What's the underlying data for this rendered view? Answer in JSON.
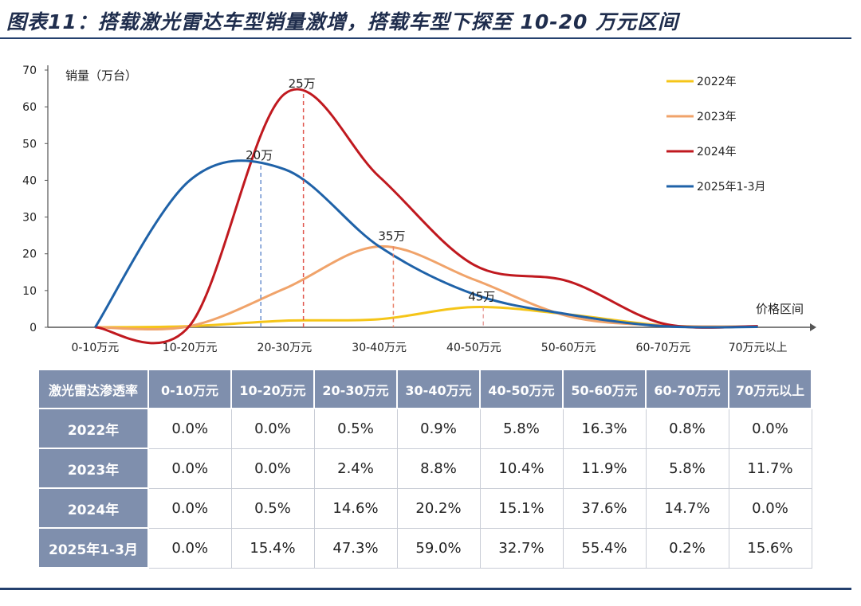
{
  "title": "图表11：搭载激光雷达车型销量激增，搭载车型下探至 10-20 万元区间",
  "chart_data": {
    "type": "line",
    "ylabel": "销量（万台）",
    "xlabel": "价格区间",
    "ylim": [
      0,
      70
    ],
    "y_ticks": [
      0,
      10,
      20,
      30,
      40,
      50,
      60,
      70
    ],
    "categories": [
      "0-10万元",
      "10-20万元",
      "20-30万元",
      "30-40万元",
      "40-50万元",
      "50-60万元",
      "60-70万元",
      "70万元以上"
    ],
    "series": [
      {
        "name": "2022年",
        "color": "#f5c518",
        "values": [
          0,
          0.3,
          1.8,
          2.2,
          5.5,
          3.5,
          0.5,
          0.2
        ]
      },
      {
        "name": "2023年",
        "color": "#f0a36a",
        "values": [
          0,
          0.3,
          10.5,
          22,
          13,
          3,
          0.5,
          0.2
        ]
      },
      {
        "name": "2024年",
        "color": "#c0191f",
        "values": [
          0,
          0.5,
          63.5,
          41,
          17,
          12.5,
          1,
          0.3
        ]
      },
      {
        "name": "2025年1-3月",
        "color": "#1f62a8",
        "values": [
          0,
          40,
          43,
          22,
          9,
          3.5,
          0.3,
          0.1
        ]
      }
    ],
    "legend_position": "top-right",
    "annotations": [
      {
        "text": "20万",
        "x": 1.75,
        "y": 44
      },
      {
        "text": "25万",
        "x": 2.2,
        "y": 63.5
      },
      {
        "text": "35万",
        "x": 3.15,
        "y": 22
      },
      {
        "text": "45万",
        "x": 4.1,
        "y": 5.5
      }
    ]
  },
  "table": {
    "header": [
      "激光雷达渗透率",
      "0-10万元",
      "10-20万元",
      "20-30万元",
      "30-40万元",
      "40-50万元",
      "50-60万元",
      "60-70万元",
      "70万元以上"
    ],
    "rows": [
      {
        "label": "2022年",
        "cells": [
          "0.0%",
          "0.0%",
          "0.5%",
          "0.9%",
          "5.8%",
          "16.3%",
          "0.8%",
          "0.0%"
        ]
      },
      {
        "label": "2023年",
        "cells": [
          "0.0%",
          "0.0%",
          "2.4%",
          "8.8%",
          "10.4%",
          "11.9%",
          "5.8%",
          "11.7%"
        ]
      },
      {
        "label": "2024年",
        "cells": [
          "0.0%",
          "0.5%",
          "14.6%",
          "20.2%",
          "15.1%",
          "37.6%",
          "14.7%",
          "0.0%"
        ]
      },
      {
        "label": "2025年1-3月",
        "cells": [
          "0.0%",
          "15.4%",
          "47.3%",
          "59.0%",
          "32.7%",
          "55.4%",
          "0.2%",
          "15.6%"
        ]
      }
    ]
  }
}
